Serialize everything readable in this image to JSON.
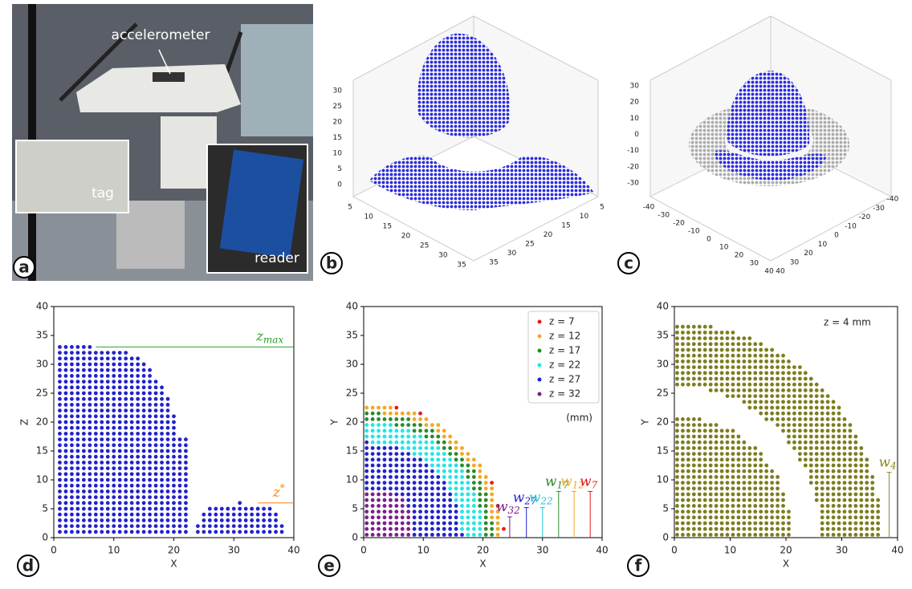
{
  "panels": {
    "a": {
      "label": "a",
      "annotations": [
        "accelerometer",
        "tag",
        "reader"
      ]
    },
    "b": {
      "label": "b",
      "zticks": [
        0,
        5,
        10,
        15,
        20,
        25,
        30
      ],
      "xticks": [
        5,
        10,
        15,
        20,
        25,
        30,
        35
      ],
      "yticks": [
        5,
        10,
        15,
        20,
        25,
        30,
        35
      ]
    },
    "c": {
      "label": "c",
      "zticks": [
        -30,
        -20,
        -10,
        0,
        10,
        20,
        30
      ],
      "xticks": [
        -40,
        -30,
        -20,
        -10,
        0,
        10,
        20,
        30,
        40
      ],
      "yticks": [
        -40,
        -30,
        -20,
        -10,
        0,
        10,
        20,
        30,
        40
      ]
    },
    "d": {
      "label": "d",
      "xlabel": "X",
      "ylabel": "Z",
      "xlim": [
        0,
        40
      ],
      "ylim": [
        0,
        40
      ],
      "xticks": [
        0,
        10,
        20,
        30,
        40
      ],
      "yticks": [
        0,
        5,
        10,
        15,
        20,
        25,
        30,
        35,
        40
      ],
      "color": "#2222cc",
      "annotations": [
        {
          "base": "z",
          "sub": "max",
          "y": 33,
          "color": "#2ca02c"
        },
        {
          "base": "z",
          "sup": "*",
          "y": 6,
          "color": "#ff7f0e"
        }
      ]
    },
    "e": {
      "label": "e",
      "xlabel": "X",
      "ylabel": "Y",
      "xlim": [
        0,
        40
      ],
      "ylim": [
        0,
        40
      ],
      "xticks": [
        0,
        10,
        20,
        30,
        40
      ],
      "yticks": [
        0,
        5,
        10,
        15,
        20,
        25,
        30,
        35,
        40
      ],
      "unit": "(mm)",
      "series": [
        {
          "name": "z = 7",
          "color": "#e41a1c"
        },
        {
          "name": "z = 12",
          "color": "#f5a623"
        },
        {
          "name": "z = 17",
          "color": "#2a8a2a"
        },
        {
          "name": "z = 22",
          "color": "#22e5e5"
        },
        {
          "name": "z = 27",
          "color": "#2222cc"
        },
        {
          "name": "z = 32",
          "color": "#7b1f8a"
        }
      ],
      "widths": [
        {
          "base": "w",
          "sub": "32",
          "x": 24.5,
          "height": 3.6,
          "color": "#7b1f8a"
        },
        {
          "base": "w",
          "sub": "27",
          "x": 27.3,
          "height": 5.2,
          "color": "#2222cc"
        },
        {
          "base": "w",
          "sub": "22",
          "x": 30,
          "height": 5.2,
          "color": "#22c5d5"
        },
        {
          "base": "w",
          "sub": "17",
          "x": 32.7,
          "height": 8,
          "color": "#2a8a2a"
        },
        {
          "base": "w",
          "sub": "12",
          "x": 35.3,
          "height": 8,
          "color": "#f5a623"
        },
        {
          "base": "w",
          "sub": "7",
          "x": 38,
          "height": 8,
          "color": "#e41a1c"
        }
      ]
    },
    "f": {
      "label": "f",
      "xlabel": "X",
      "ylabel": "Y",
      "xlim": [
        0,
        40
      ],
      "ylim": [
        0,
        40
      ],
      "xticks": [
        0,
        10,
        20,
        30,
        40
      ],
      "yticks": [
        0,
        5,
        10,
        15,
        20,
        25,
        30,
        35,
        40
      ],
      "title": "z = 4 mm",
      "color": "#7d7d1f",
      "widths": [
        {
          "base": "w",
          "sub": "4",
          "x": 38.5,
          "height": 11.3,
          "color": "#8a8a1f"
        }
      ]
    }
  }
}
